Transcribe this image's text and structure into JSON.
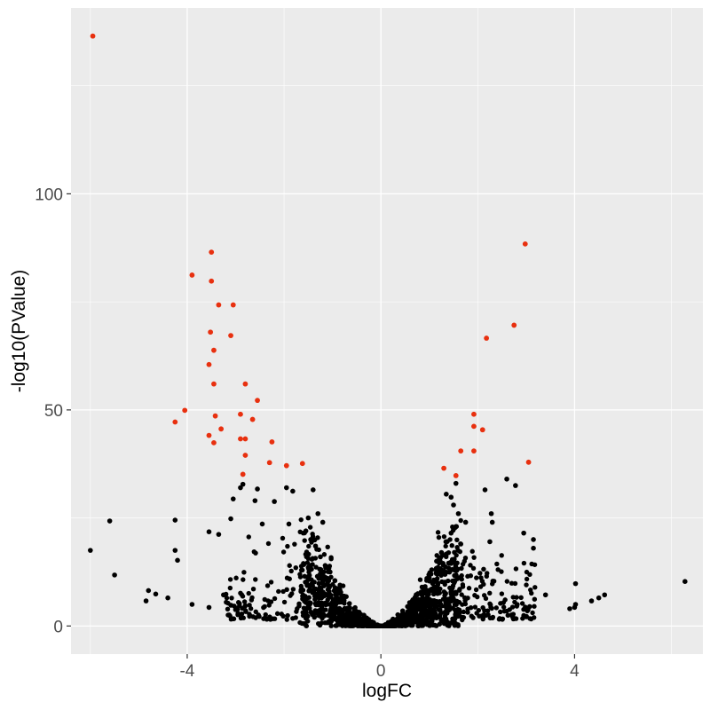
{
  "chart_data": {
    "type": "scatter",
    "title": "",
    "xlabel": "logFC",
    "ylabel": "-log10(PValue)",
    "xlim": [
      -6.4,
      6.65
    ],
    "ylim": [
      -6.5,
      143
    ],
    "x_ticks": [
      -4,
      0,
      4
    ],
    "x_tick_labels": [
      "-4",
      "0",
      "4"
    ],
    "y_ticks": [
      0,
      50,
      100
    ],
    "y_tick_labels": [
      "0",
      "50",
      "100"
    ],
    "grid": true,
    "legend": "none",
    "colors": {
      "panel": "#ebebeb",
      "grid_major": "#ffffff",
      "significant": "#e8300f",
      "not_significant": "#000000"
    },
    "series": [
      {
        "color": "#e8300f",
        "points": [
          [
            -5.95,
            136.5
          ],
          [
            -3.5,
            86.5
          ],
          [
            -3.9,
            81.2
          ],
          [
            -3.5,
            79.8
          ],
          [
            -3.35,
            74.3
          ],
          [
            -3.05,
            74.3
          ],
          [
            -3.52,
            68.0
          ],
          [
            -3.1,
            67.2
          ],
          [
            -3.45,
            63.8
          ],
          [
            -3.55,
            60.5
          ],
          [
            -3.45,
            56.0
          ],
          [
            -2.8,
            56.0
          ],
          [
            -2.55,
            52.2
          ],
          [
            -4.05,
            49.9
          ],
          [
            -2.9,
            49.0
          ],
          [
            -3.42,
            48.6
          ],
          [
            -2.65,
            47.8
          ],
          [
            -4.25,
            47.2
          ],
          [
            -3.3,
            45.6
          ],
          [
            -3.55,
            44.1
          ],
          [
            -2.9,
            43.3
          ],
          [
            -2.8,
            43.3
          ],
          [
            -3.45,
            42.4
          ],
          [
            -2.25,
            42.6
          ],
          [
            -2.8,
            39.5
          ],
          [
            -2.3,
            37.8
          ],
          [
            -1.95,
            37.1
          ],
          [
            -1.62,
            37.6
          ],
          [
            -2.85,
            35.1
          ],
          [
            2.98,
            88.4
          ],
          [
            2.75,
            69.6
          ],
          [
            2.18,
            66.6
          ],
          [
            1.92,
            49.0
          ],
          [
            1.92,
            46.2
          ],
          [
            2.1,
            45.4
          ],
          [
            1.65,
            40.5
          ],
          [
            1.92,
            40.5
          ],
          [
            3.05,
            37.9
          ],
          [
            1.3,
            36.5
          ],
          [
            1.55,
            34.8
          ]
        ]
      },
      {
        "color": "#000000",
        "points": [
          [
            -6.0,
            17.5
          ],
          [
            -5.6,
            24.3
          ],
          [
            -5.5,
            11.8
          ],
          [
            -4.85,
            5.8
          ],
          [
            -4.8,
            8.2
          ],
          [
            -4.65,
            7.4
          ],
          [
            -4.4,
            6.5
          ],
          [
            -4.25,
            24.5
          ],
          [
            -4.25,
            17.5
          ],
          [
            -4.2,
            15.2
          ],
          [
            -3.9,
            5.0
          ],
          [
            -3.55,
            21.8
          ],
          [
            -3.55,
            4.3
          ],
          [
            -3.35,
            21.2
          ],
          [
            -3.25,
            7.2
          ],
          [
            -3.1,
            24.8
          ],
          [
            -3.05,
            29.4
          ],
          [
            -2.9,
            32.0
          ],
          [
            -2.85,
            32.8
          ],
          [
            -2.6,
            29.0
          ],
          [
            -2.55,
            31.7
          ],
          [
            -2.45,
            23.6
          ],
          [
            -2.2,
            28.8
          ],
          [
            -1.95,
            32.0
          ],
          [
            -1.82,
            31.2
          ],
          [
            -1.4,
            31.5
          ],
          [
            -1.9,
            23.6
          ],
          [
            -1.5,
            25.0
          ],
          [
            -1.3,
            26.0
          ],
          [
            -1.2,
            24.0
          ],
          [
            4.02,
            9.8
          ],
          [
            4.02,
            5.0
          ],
          [
            4.0,
            4.3
          ],
          [
            3.9,
            4.0
          ],
          [
            3.4,
            7.2
          ],
          [
            3.15,
            20.0
          ],
          [
            3.15,
            18.0
          ],
          [
            2.95,
            21.5
          ],
          [
            2.78,
            32.5
          ],
          [
            2.6,
            34.0
          ],
          [
            2.28,
            26.0
          ],
          [
            2.3,
            24.0
          ],
          [
            2.25,
            19.5
          ],
          [
            2.15,
            31.5
          ],
          [
            4.5,
            6.5
          ],
          [
            4.62,
            7.2
          ],
          [
            4.35,
            5.8
          ],
          [
            6.28,
            10.3
          ],
          [
            1.35,
            30.5
          ],
          [
            1.45,
            29.8
          ],
          [
            1.5,
            28.0
          ],
          [
            1.55,
            33.0
          ],
          [
            1.6,
            26.0
          ],
          [
            1.75,
            24.0
          ],
          [
            -0.15,
            0.8
          ],
          [
            -0.25,
            1.5
          ],
          [
            -0.35,
            2.5
          ],
          [
            -0.45,
            3.2
          ],
          [
            -0.55,
            4.0
          ],
          [
            -0.65,
            5.2
          ],
          [
            -0.75,
            6.8
          ],
          [
            -0.85,
            8.5
          ],
          [
            -0.95,
            10.5
          ],
          [
            -1.05,
            12.5
          ],
          [
            -1.15,
            14.0
          ],
          [
            -1.25,
            16.0
          ],
          [
            -1.35,
            18.5
          ],
          [
            -1.45,
            20.0
          ],
          [
            -1.55,
            22.0
          ],
          [
            0.15,
            0.8
          ],
          [
            0.25,
            1.6
          ],
          [
            0.35,
            2.6
          ],
          [
            0.45,
            3.5
          ],
          [
            0.55,
            4.5
          ],
          [
            0.65,
            5.8
          ],
          [
            0.75,
            7.2
          ],
          [
            0.85,
            9.0
          ],
          [
            0.95,
            11.0
          ],
          [
            1.05,
            13.0
          ],
          [
            1.15,
            15.0
          ],
          [
            1.25,
            17.0
          ],
          [
            1.35,
            19.5
          ],
          [
            1.45,
            21.5
          ],
          [
            1.55,
            23.0
          ]
        ]
      }
    ]
  }
}
